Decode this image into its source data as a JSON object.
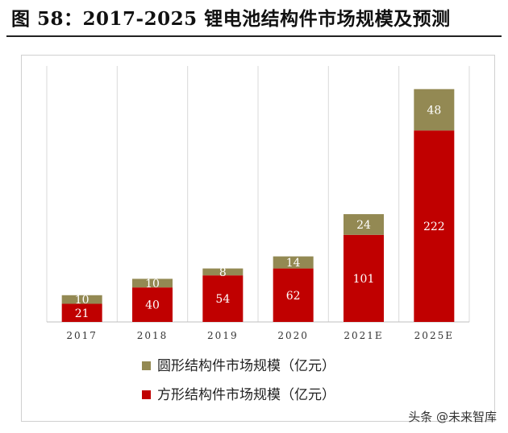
{
  "title": "图  58：2017-2025 锂电池结构件市场规模及预测",
  "watermark": "头条 @未来智库",
  "chart_data": {
    "type": "bar",
    "stacked": true,
    "categories": [
      "2017",
      "2018",
      "2019",
      "2020",
      "2021E",
      "2025E"
    ],
    "series": [
      {
        "name": "方形结构件市场规模（亿元）",
        "color": "#c00000",
        "values": [
          21,
          40,
          54,
          62,
          101,
          222
        ]
      },
      {
        "name": "圆形结构件市场规模（亿元）",
        "color": "#938953",
        "values": [
          10,
          10,
          8,
          14,
          24,
          48
        ]
      }
    ],
    "ylim": [
      0,
      280
    ],
    "grid": "vertical",
    "legend_position": "bottom"
  }
}
